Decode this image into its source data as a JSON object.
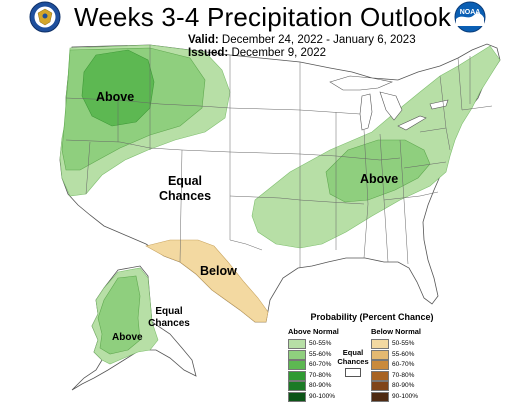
{
  "header": {
    "title": "Weeks 3-4 Precipitation Outlook",
    "valid_label": "Valid:",
    "valid_value": "December 24, 2022 - January 6, 2023",
    "issued_label": "Issued:",
    "issued_value": "December 9, 2022"
  },
  "logos": {
    "left": "doc-seal-icon",
    "right": "noaa-logo-icon"
  },
  "map_labels": {
    "above_northwest": "Above",
    "above_ohio_valley": "Above",
    "equal_chances_main_line1": "Equal",
    "equal_chances_main_line2": "Chances",
    "below_south": "Below",
    "alaska_above": "Above",
    "alaska_equal_line1": "Equal",
    "alaska_equal_line2": "Chances"
  },
  "legend": {
    "title": "Probability (Percent Chance)",
    "above_header": "Above Normal",
    "below_header": "Below Normal",
    "equal_line1": "Equal",
    "equal_line2": "Chances",
    "above": [
      {
        "label": "50-55%",
        "color": "#b7dfa6"
      },
      {
        "label": "55-60%",
        "color": "#8fcf7e"
      },
      {
        "label": "60-70%",
        "color": "#5db852"
      },
      {
        "label": "70-80%",
        "color": "#2f9a32"
      },
      {
        "label": "80-90%",
        "color": "#1b7a25"
      },
      {
        "label": "90-100%",
        "color": "#0c5417"
      }
    ],
    "below": [
      {
        "label": "50-55%",
        "color": "#f3d9a1"
      },
      {
        "label": "55-60%",
        "color": "#e4b971"
      },
      {
        "label": "60-70%",
        "color": "#c98a3c"
      },
      {
        "label": "70-80%",
        "color": "#a86424"
      },
      {
        "label": "80-90%",
        "color": "#7f4419"
      },
      {
        "label": "90-100%",
        "color": "#4e2a12"
      }
    ]
  },
  "colors": {
    "above_50_55": "#b7dfa6",
    "above_55_60": "#8fcf7e",
    "above_60_70": "#5db852",
    "below_50_55": "#f3d9a1",
    "land": "#ffffff",
    "border": "#555555"
  }
}
